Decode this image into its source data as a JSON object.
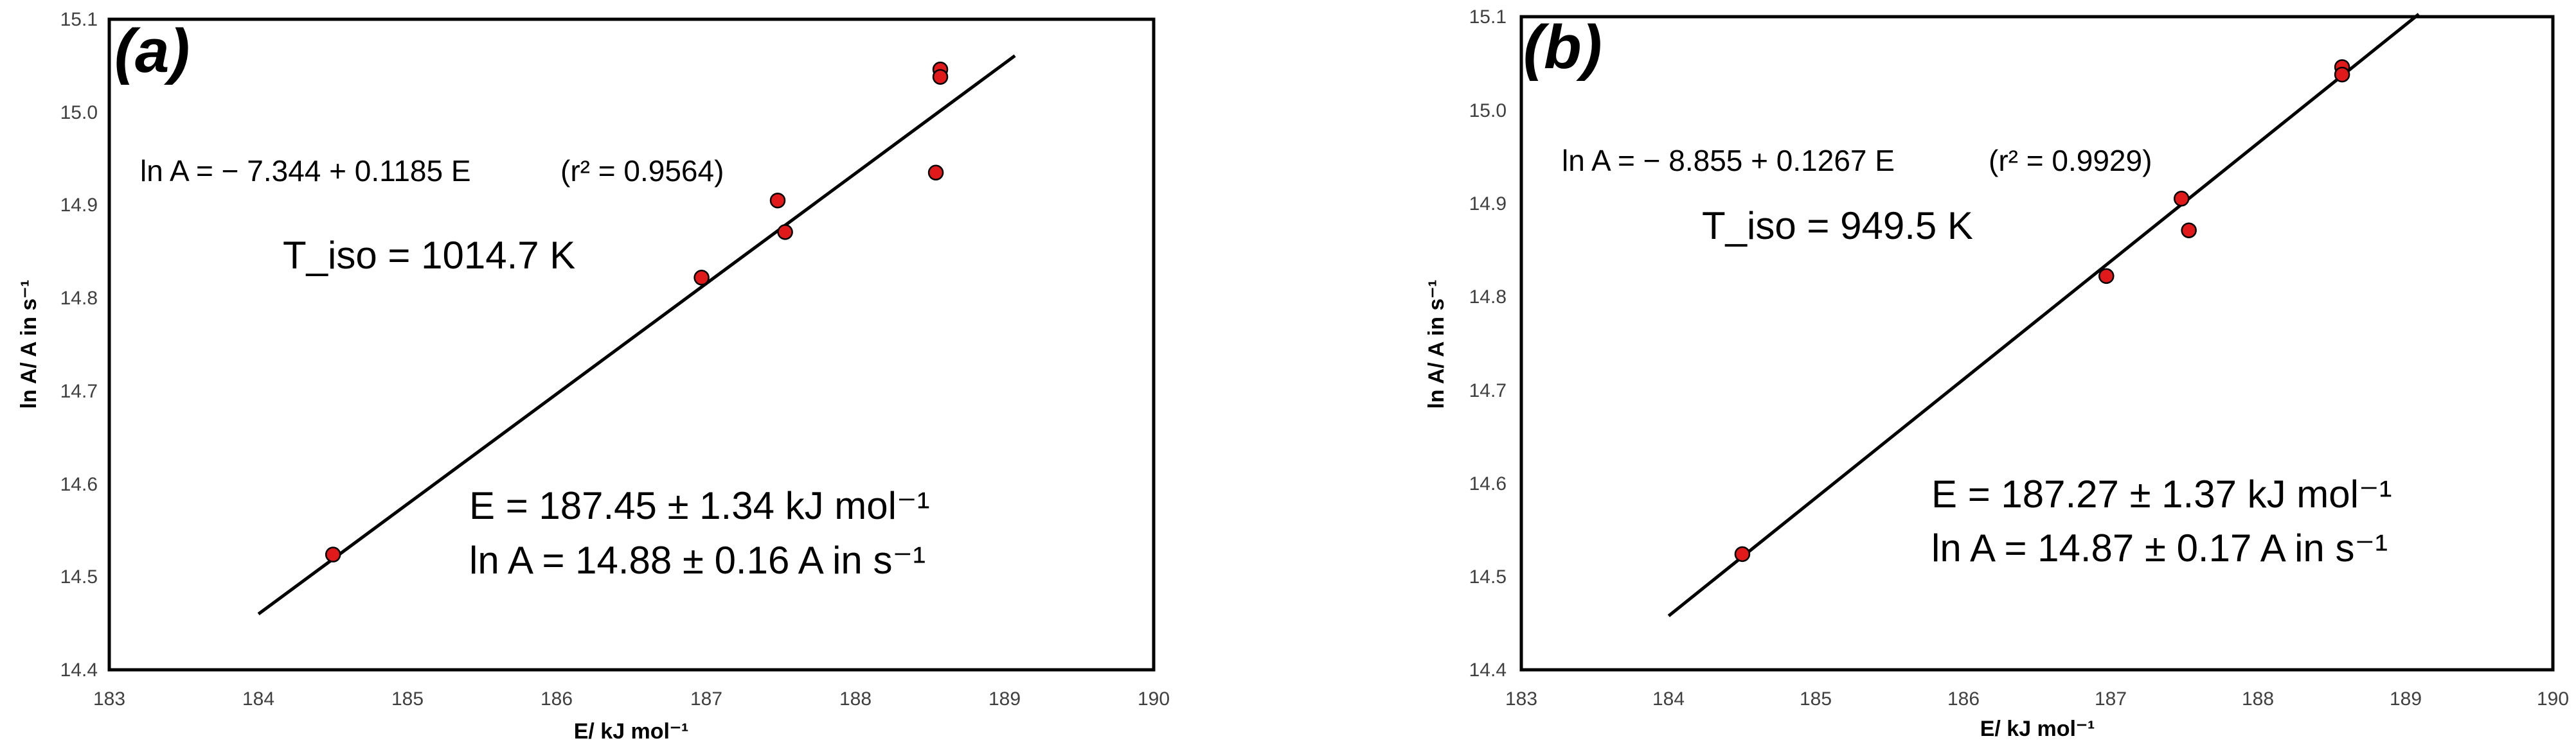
{
  "chart_data": [
    {
      "type": "scatter",
      "panel_label": "(a)",
      "xlabel": "E/ kJ mol⁻¹",
      "ylabel": "ln A/ A in s⁻¹",
      "xlim": [
        183,
        190
      ],
      "ylim": [
        14.4,
        15.1
      ],
      "x_ticks": [
        "183",
        "184",
        "185",
        "186",
        "187",
        "188",
        "189",
        "190"
      ],
      "y_ticks": [
        "14.4",
        "14.5",
        "14.6",
        "14.7",
        "14.8",
        "14.9",
        "15.0",
        "15.1"
      ],
      "points": [
        {
          "x": 184.5,
          "y": 14.524
        },
        {
          "x": 186.97,
          "y": 14.822
        },
        {
          "x": 187.48,
          "y": 14.905
        },
        {
          "x": 187.53,
          "y": 14.871
        },
        {
          "x": 188.54,
          "y": 14.935
        },
        {
          "x": 188.57,
          "y": 15.046
        },
        {
          "x": 188.57,
          "y": 15.038
        }
      ],
      "fit": {
        "intercept": -7.344,
        "slope": 0.1185,
        "x_range": [
          184.0,
          189.07
        ]
      },
      "equation": "ln A = − 7.344 + 0.1185 E",
      "r2": "(r² = 0.9564)",
      "tiso": "T_iso = 1014.7 K",
      "result_E": "E = 187.45 ± 1.34 kJ mol⁻¹",
      "result_lnA": "ln A = 14.88 ± 0.16 A in s⁻¹",
      "marker_color": "#e0191b",
      "line_color": "#000000"
    },
    {
      "type": "scatter",
      "panel_label": "(b)",
      "xlabel": "E/ kJ mol⁻¹",
      "ylabel": "ln A/ A in s⁻¹",
      "xlim": [
        183,
        190
      ],
      "ylim": [
        14.4,
        15.1
      ],
      "x_ticks": [
        "183",
        "184",
        "185",
        "186",
        "187",
        "188",
        "189",
        "190"
      ],
      "y_ticks": [
        "14.4",
        "14.5",
        "14.6",
        "14.7",
        "14.8",
        "14.9",
        "15.0",
        "15.1"
      ],
      "points": [
        {
          "x": 184.5,
          "y": 14.524
        },
        {
          "x": 186.97,
          "y": 14.822
        },
        {
          "x": 187.48,
          "y": 14.905
        },
        {
          "x": 187.53,
          "y": 14.871
        },
        {
          "x": 188.57,
          "y": 15.046
        },
        {
          "x": 188.57,
          "y": 15.038
        }
      ],
      "fit": {
        "intercept": -8.855,
        "slope": 0.1267,
        "x_range": [
          184.0,
          189.09
        ]
      },
      "equation": "ln A = − 8.855 + 0.1267 E",
      "r2": "(r² = 0.9929)",
      "tiso": "T_iso = 949.5 K",
      "result_E": "E = 187.27 ± 1.37 kJ mol⁻¹",
      "result_lnA": "ln A = 14.87 ± 0.17 A in s⁻¹",
      "marker_color": "#e0191b",
      "line_color": "#000000"
    }
  ]
}
